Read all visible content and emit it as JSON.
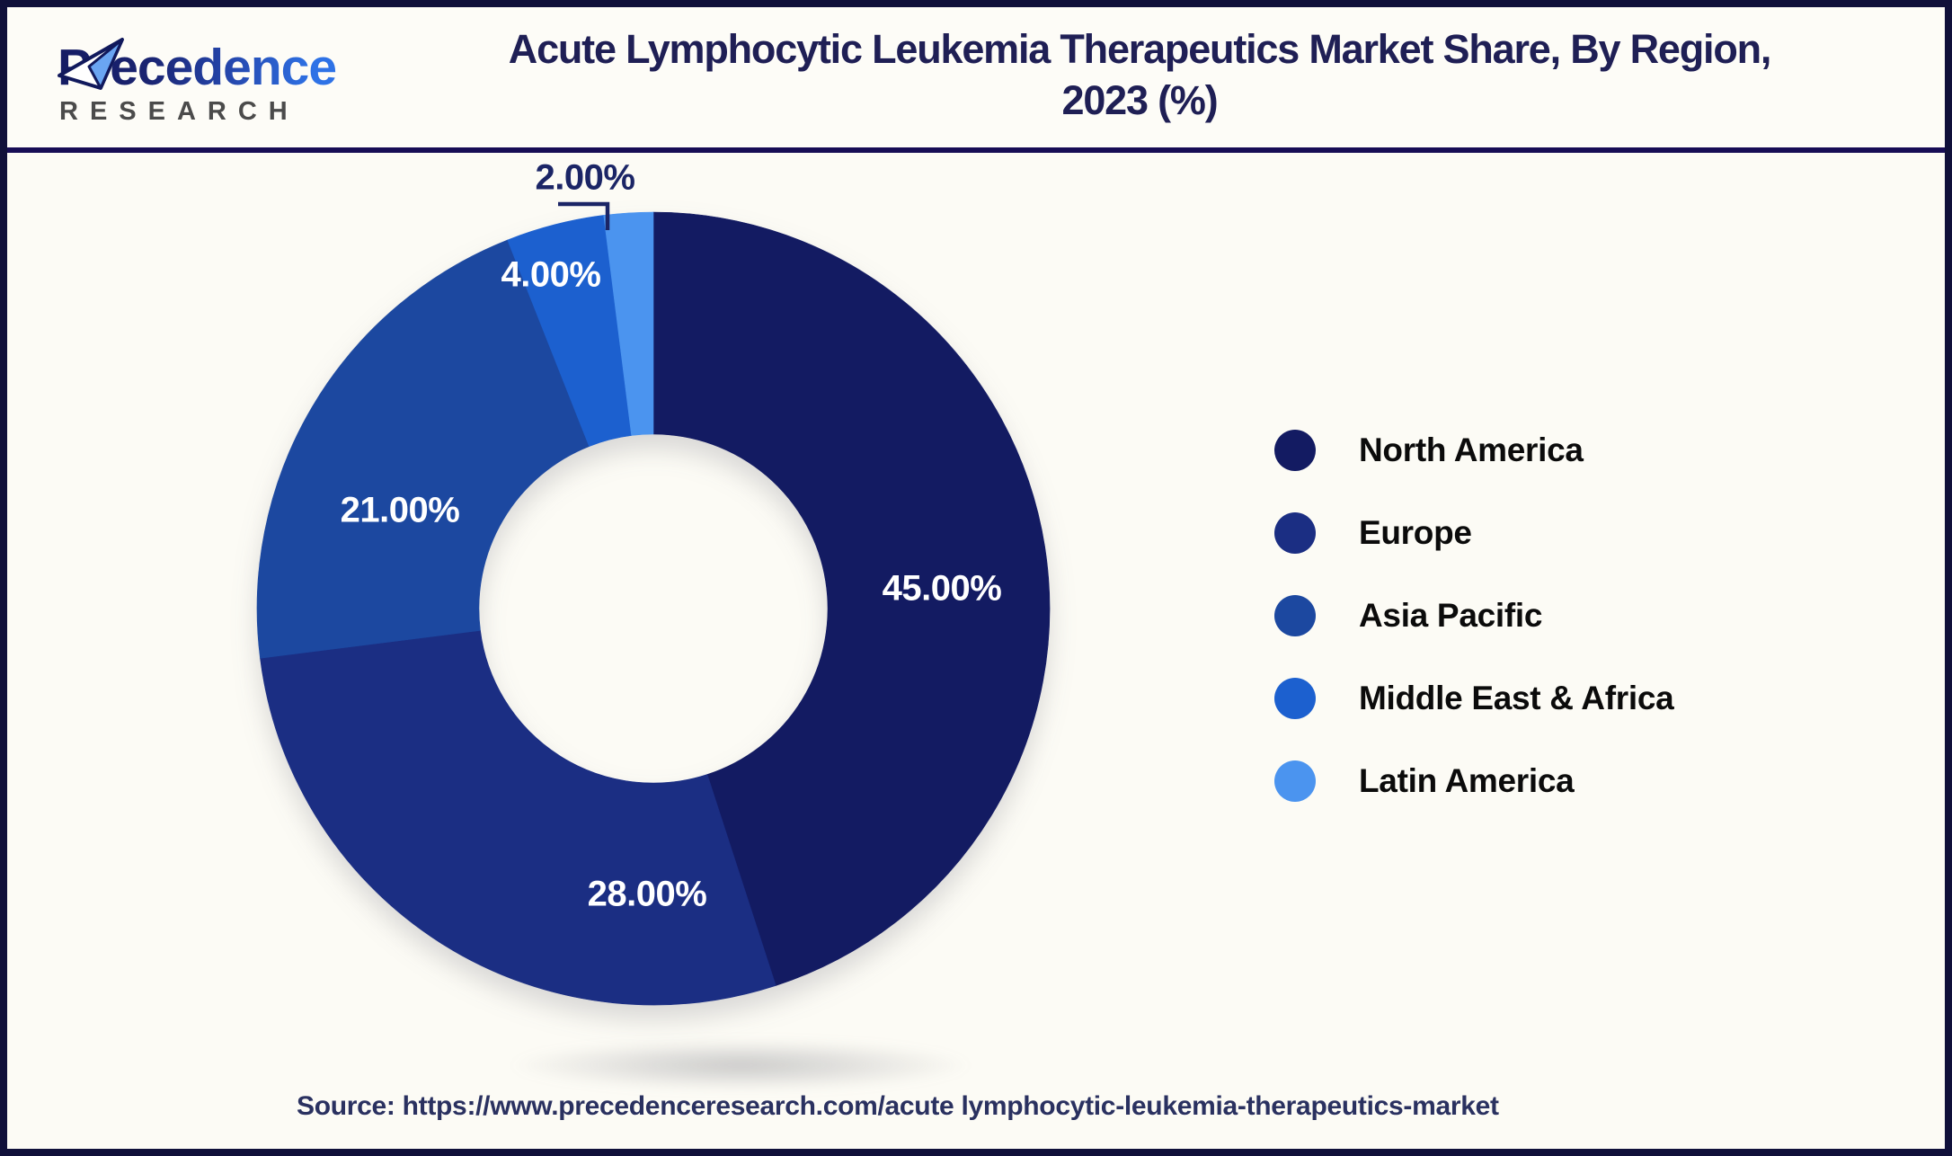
{
  "header": {
    "logo": {
      "brand": "Precedence",
      "sub": "RESEARCH"
    },
    "title_line1": "Acute Lymphocytic Leukemia Therapeutics Market Share, By Region,",
    "title_line2": "2023 (%)"
  },
  "chart_data": {
    "type": "pie",
    "title": "Acute Lymphocytic Leukemia Therapeutics Market Share, By Region, 2023 (%)",
    "donut": true,
    "start_angle_deg": 0,
    "direction": "clockwise",
    "inner_radius_ratio": 0.44,
    "legend_position": "right",
    "slices": [
      {
        "label": "North America",
        "value": 45,
        "display": "45.00%",
        "color": "#131b62"
      },
      {
        "label": "Europe",
        "value": 28,
        "display": "28.00%",
        "color": "#1b2e83"
      },
      {
        "label": "Asia Pacific",
        "value": 21,
        "display": "21.00%",
        "color": "#1c48a0"
      },
      {
        "label": "Middle East & Africa",
        "value": 4,
        "display": "4.00%",
        "color": "#1c60cf"
      },
      {
        "label": "Latin America",
        "value": 2,
        "display": "2.00%",
        "color": "#4b94ef"
      }
    ]
  },
  "source": {
    "text": "Source: https://www.precedenceresearch.com/acute lymphocytic-leukemia-therapeutics-market"
  }
}
